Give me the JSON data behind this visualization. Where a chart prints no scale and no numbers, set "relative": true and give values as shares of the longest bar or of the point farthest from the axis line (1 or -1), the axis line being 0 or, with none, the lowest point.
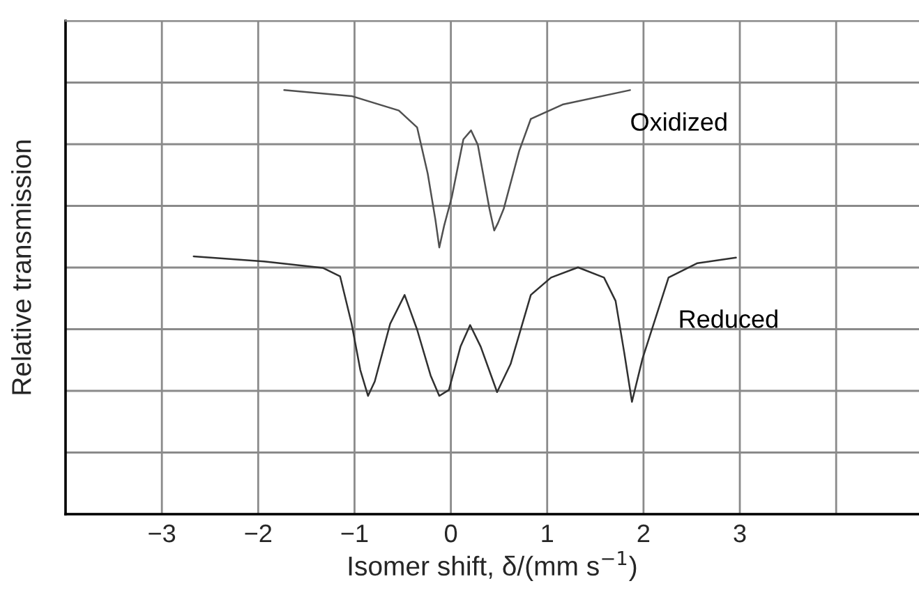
{
  "chart_data": {
    "type": "line",
    "relative": true,
    "xlabel": "Isomer shift, δ/(mm s$^{−1}$)",
    "ylabel": "Relative transmission",
    "xlim": [
      -4,
      4.86
    ],
    "xticks": [
      -3,
      -2,
      -1,
      0,
      1,
      2,
      3,
      {
        "value": 4,
        "label": null
      }
    ],
    "grid": true,
    "series": [
      {
        "name": "Oxidized",
        "color": "#505050",
        "x": [
          -1.73,
          -1.03,
          -0.54,
          -0.35,
          -0.24,
          -0.16,
          -0.12,
          -0.07,
          0.01,
          0.13,
          0.21,
          0.28,
          0.4,
          0.45,
          0.49,
          0.55,
          0.71,
          0.83,
          1.16,
          1.86
        ],
        "values": [
          1.0,
          0.986,
          0.952,
          0.912,
          0.803,
          0.694,
          0.629,
          0.68,
          0.748,
          0.884,
          0.905,
          0.871,
          0.721,
          0.669,
          0.687,
          0.721,
          0.857,
          0.932,
          0.966,
          1.0
        ]
      },
      {
        "name": "Reduced",
        "color": "#303030",
        "x": [
          -2.67,
          -1.94,
          -1.33,
          -1.15,
          -1.03,
          -0.94,
          -0.86,
          -0.79,
          -0.63,
          -0.48,
          -0.35,
          -0.21,
          -0.12,
          -0.02,
          0.1,
          0.2,
          0.31,
          0.48,
          0.62,
          0.83,
          1.04,
          1.32,
          1.59,
          1.71,
          1.8,
          1.88,
          1.99,
          2.26,
          2.56,
          2.96
        ],
        "values": [
          0.608,
          0.596,
          0.581,
          0.561,
          0.449,
          0.34,
          0.279,
          0.313,
          0.449,
          0.517,
          0.435,
          0.327,
          0.279,
          0.293,
          0.395,
          0.446,
          0.395,
          0.288,
          0.354,
          0.517,
          0.558,
          0.582,
          0.558,
          0.503,
          0.381,
          0.265,
          0.367,
          0.558,
          0.592,
          0.605
        ]
      }
    ]
  }
}
